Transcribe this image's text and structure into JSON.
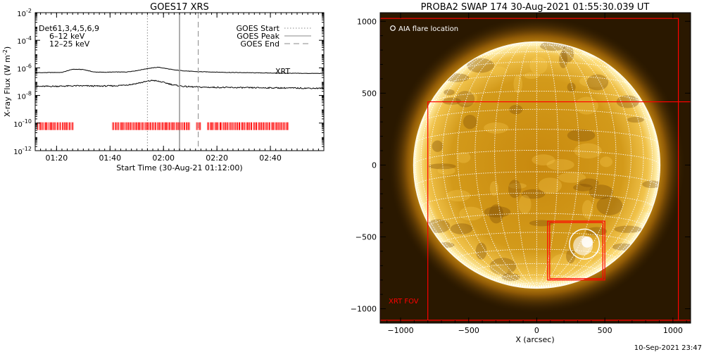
{
  "chart_data": [
    {
      "type": "line",
      "title": "GOES17 XRS",
      "xlabel": "Start Time (30-Aug-21 01:12:00)",
      "ylabel": "X-ray Flux (W m",
      "ylabel_sup": "-2",
      "ylabel_close": ")",
      "y_scale": "log",
      "ylim": [
        1e-12,
        0.01
      ],
      "xlim_minutes": [
        0,
        108
      ],
      "x_ticks": [
        {
          "minutes": 8,
          "label": "01:20"
        },
        {
          "minutes": 28,
          "label": "01:40"
        },
        {
          "minutes": 48,
          "label": "02:00"
        },
        {
          "minutes": 68,
          "label": "02:20"
        },
        {
          "minutes": 88,
          "label": "02:40"
        }
      ],
      "y_ticks": [
        {
          "exp": -12,
          "label_base": "10",
          "label_exp": "-12"
        },
        {
          "exp": -10,
          "label_base": "10",
          "label_exp": "-10"
        },
        {
          "exp": -8,
          "label_base": "10",
          "label_exp": "-8"
        },
        {
          "exp": -6,
          "label_base": "10",
          "label_exp": "-6"
        },
        {
          "exp": -4,
          "label_base": "10",
          "label_exp": "-4"
        },
        {
          "exp": -2,
          "label_base": "10",
          "label_exp": "-2"
        }
      ],
      "legend_left": {
        "detectors": "Det61,3,4,5,6,9",
        "band_low": "6–12 keV",
        "band_high": "12–25 keV",
        "band_low_color": "#cc00cc",
        "band_high_color": "#00cc00"
      },
      "legend_right": [
        {
          "label": "GOES Start",
          "style": "dotted"
        },
        {
          "label": "GOES Peak",
          "style": "solid"
        },
        {
          "label": "GOES End",
          "style": "dashed"
        }
      ],
      "series": [
        {
          "band": "low",
          "x_minutes": [
            0,
            10,
            14,
            18,
            22,
            26,
            30,
            34,
            38,
            42,
            46,
            49,
            52,
            56,
            60,
            66,
            72,
            80,
            90,
            100,
            108
          ],
          "y_exp": [
            -6.35,
            -6.33,
            -6.1,
            -6.12,
            -6.3,
            -6.32,
            -6.3,
            -6.3,
            -6.2,
            -6.05,
            -5.95,
            -6.05,
            -6.15,
            -6.22,
            -6.27,
            -6.3,
            -6.33,
            -6.35,
            -6.38,
            -6.4,
            -6.4
          ]
        },
        {
          "band": "high",
          "x_minutes": [
            0,
            8,
            16,
            24,
            30,
            36,
            40,
            44,
            48,
            52,
            56,
            62,
            70,
            80,
            90,
            100,
            108
          ],
          "y_exp": [
            -7.35,
            -7.33,
            -7.3,
            -7.32,
            -7.3,
            -7.2,
            -7.05,
            -6.9,
            -7.05,
            -7.25,
            -7.35,
            -7.4,
            -7.42,
            -7.44,
            -7.45,
            -7.47,
            -7.48
          ]
        }
      ],
      "events": [
        {
          "label": "GOES Start",
          "minutes": 42
        },
        {
          "label": "GOES Peak",
          "minutes": 54
        },
        {
          "label": "GOES End",
          "minutes": 61
        }
      ],
      "xrt_label": "XRT",
      "xrt_color": "#ff0000",
      "xrt_level_exp": -10.2,
      "xrt_ranges_minutes": [
        [
          1,
          14.3
        ],
        [
          29,
          58
        ],
        [
          60.5,
          62
        ],
        [
          64.5,
          95
        ]
      ]
    }
  ],
  "image_panel": {
    "title": "PROBA2 SWAP 174 30-Aug-2021 01:55:30.039 UT",
    "xlabel": "X (arcsec)",
    "legend_label": "AIA flare location",
    "xrt_fov_label": "XRT FOV",
    "x_ticks": [
      -1000,
      -500,
      0,
      500,
      1000
    ],
    "y_ticks": [
      -1000,
      -500,
      0,
      500,
      1000
    ],
    "xlim": [
      -1150,
      1130
    ],
    "ylim": [
      -1100,
      1060
    ],
    "disk_radius_arcsec": 905,
    "box_color": "#ff0000",
    "flare_location_arcsec": [
      350,
      -550
    ],
    "flare_circle_radius_arcsec": 110,
    "xrt_fov_box_arcsec": [
      -800,
      -1080,
      1140,
      440
    ],
    "small_boxes_arcsec": [
      [
        80,
        -800,
        500,
        -390
      ],
      [
        95,
        -790,
        485,
        -400
      ]
    ],
    "outer_box_arcsec": [
      -1150,
      -1080,
      1040,
      1020
    ]
  },
  "footer_timestamp": "10-Sep-2021 23:47"
}
